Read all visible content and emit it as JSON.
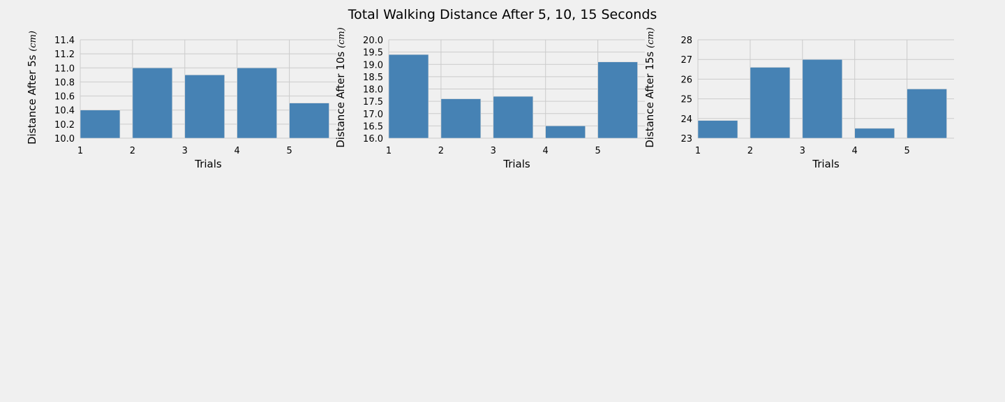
{
  "figure": {
    "title": "Total Walking Distance After 5, 10, 15 Seconds",
    "bar_color": "#4682b4",
    "background": "#f0f0f0",
    "grid_color": "#cbcbcb"
  },
  "chart_data": [
    {
      "type": "bar",
      "title": "",
      "xlabel": "Trials",
      "ylabel": "Distance After 5s",
      "ylabel_unit": "(cm)",
      "categories": [
        1,
        2,
        3,
        4,
        5
      ],
      "values": [
        10.4,
        11.0,
        10.9,
        11.0,
        10.5
      ],
      "ylim": [
        10.0,
        11.4
      ],
      "yticks": [
        "10.0",
        "10.2",
        "10.4",
        "10.6",
        "10.8",
        "11.0",
        "11.2",
        "11.4"
      ],
      "xticks": [
        "1",
        "2",
        "3",
        "4",
        "5"
      ],
      "grid": true
    },
    {
      "type": "bar",
      "title": "",
      "xlabel": "Trials",
      "ylabel": "Distance After 10s",
      "ylabel_unit": "(cm)",
      "categories": [
        1,
        2,
        3,
        4,
        5
      ],
      "values": [
        19.4,
        17.6,
        17.7,
        16.5,
        19.1
      ],
      "ylim": [
        16.0,
        20.0
      ],
      "yticks": [
        "16.0",
        "16.5",
        "17.0",
        "17.5",
        "18.0",
        "18.5",
        "19.0",
        "19.5",
        "20.0"
      ],
      "xticks": [
        "1",
        "2",
        "3",
        "4",
        "5"
      ],
      "grid": true
    },
    {
      "type": "bar",
      "title": "",
      "xlabel": "Trials",
      "ylabel": "Distance After 15s",
      "ylabel_unit": "(cm)",
      "categories": [
        1,
        2,
        3,
        4,
        5
      ],
      "values": [
        23.9,
        26.6,
        27.0,
        23.5,
        25.5
      ],
      "ylim": [
        23,
        28
      ],
      "yticks": [
        "23",
        "24",
        "25",
        "26",
        "27",
        "28"
      ],
      "xticks": [
        "1",
        "2",
        "3",
        "4",
        "5"
      ],
      "grid": true
    }
  ]
}
